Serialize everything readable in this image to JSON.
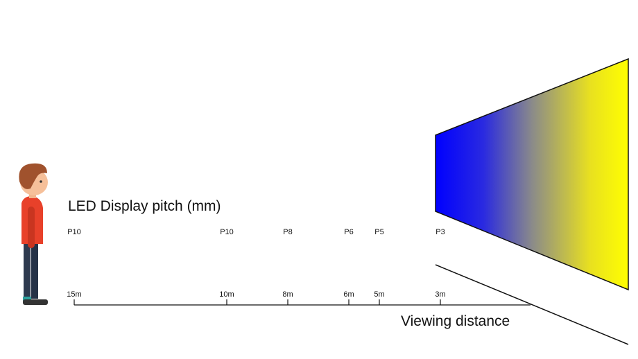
{
  "title": "LED Display pitch (mm)",
  "axis_label": "Viewing distance",
  "items": [
    {
      "pitch": "P10",
      "distance": {
        "value": 15,
        "label": "15m"
      }
    },
    {
      "pitch": "P10",
      "distance": {
        "value": 10,
        "label": "10m"
      }
    },
    {
      "pitch": "P8",
      "distance": {
        "value": 8,
        "label": "8m"
      }
    },
    {
      "pitch": "P6",
      "distance": {
        "value": 6,
        "label": "6m"
      }
    },
    {
      "pitch": "P5",
      "distance": {
        "value": 5,
        "label": "5m"
      }
    },
    {
      "pitch": "P3",
      "distance": {
        "value": 3,
        "label": "3m"
      }
    }
  ]
}
